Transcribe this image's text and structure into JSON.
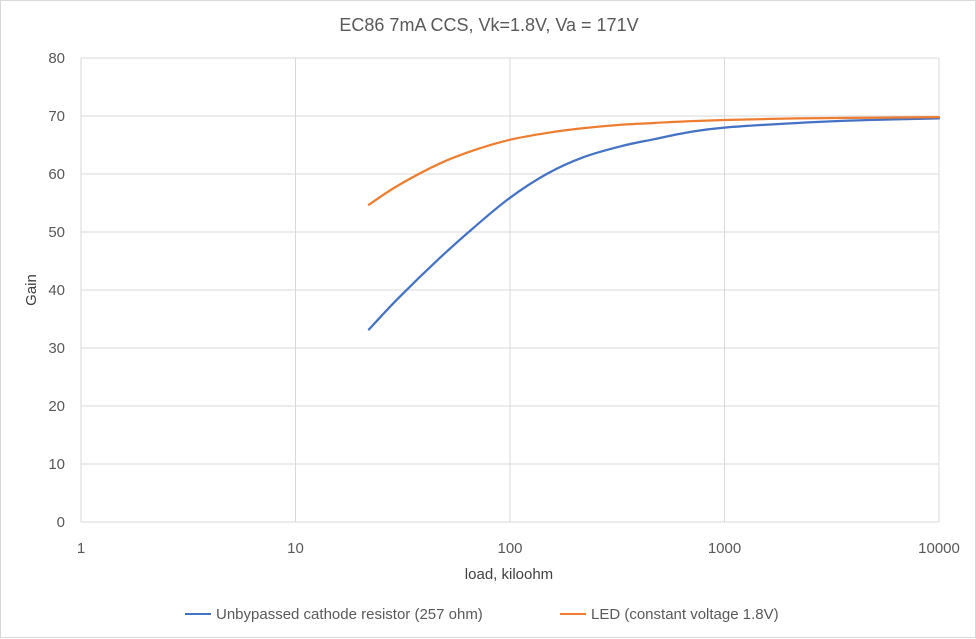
{
  "chart_data": {
    "type": "line",
    "title": "EC86 7mA CCS, Vk=1.8V, Va = 171V",
    "xlabel": "load, kiloohm",
    "ylabel": "Gain",
    "xscale": "log",
    "xlim": [
      1,
      10000
    ],
    "ylim": [
      0,
      80
    ],
    "x_ticks": [
      "1",
      "10",
      "100",
      "1000",
      "10000"
    ],
    "y_ticks": [
      "0",
      "10",
      "20",
      "30",
      "40",
      "50",
      "60",
      "70",
      "80"
    ],
    "grid": true,
    "legend_position": "bottom",
    "series": [
      {
        "name": "Unbypassed cathode resistor (257 ohm)",
        "color": "#4472c4",
        "x": [
          22,
          30,
          47,
          68,
          100,
          150,
          220,
          330,
          470,
          680,
          1000,
          2200,
          4700,
          10000
        ],
        "y": [
          33.2,
          38.5,
          45.5,
          50.8,
          55.9,
          60.1,
          62.9,
          64.8,
          66.0,
          67.2,
          68.0,
          68.8,
          69.3,
          69.6
        ]
      },
      {
        "name": "LED (constant voltage 1.8V)",
        "color": "#ed7d31",
        "x": [
          22,
          30,
          47,
          68,
          100,
          150,
          220,
          330,
          470,
          680,
          1000,
          2200,
          4700,
          10000
        ],
        "y": [
          54.7,
          58.0,
          61.8,
          64.1,
          65.9,
          67.1,
          67.9,
          68.5,
          68.8,
          69.1,
          69.3,
          69.6,
          69.7,
          69.8
        ]
      }
    ]
  }
}
